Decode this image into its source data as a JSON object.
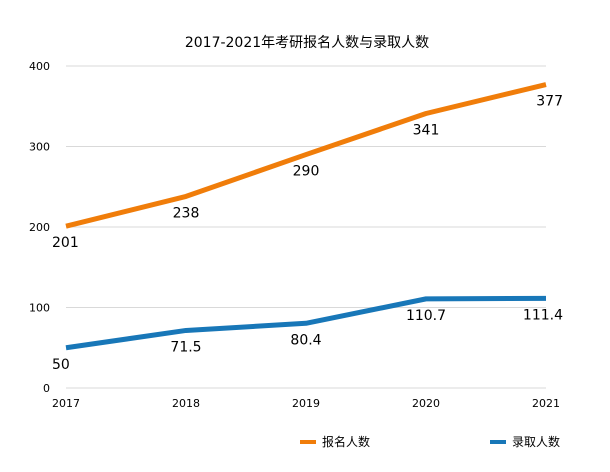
{
  "chart_data": {
    "type": "line",
    "title": "2017-2021年考研报名人数与录取人数",
    "xlabel": "",
    "ylabel": "",
    "categories": [
      "2017",
      "2018",
      "2019",
      "2020",
      "2021"
    ],
    "ylim": [
      0,
      400
    ],
    "yticks": [
      "0",
      "100",
      "200",
      "300",
      "400"
    ],
    "grid": true,
    "legend_position": "bottom",
    "series": [
      {
        "name": "报名人数",
        "color": "#f07d0a",
        "values": [
          201,
          238,
          290,
          341,
          377
        ],
        "labels": [
          "201",
          "238",
          "290",
          "341",
          "377"
        ]
      },
      {
        "name": "录取人数",
        "color": "#1877b8",
        "values": [
          50,
          71.5,
          80.4,
          110.7,
          111.4
        ],
        "labels": [
          "50",
          "71.5",
          "80.4",
          "110.7",
          "111.4"
        ]
      }
    ]
  }
}
